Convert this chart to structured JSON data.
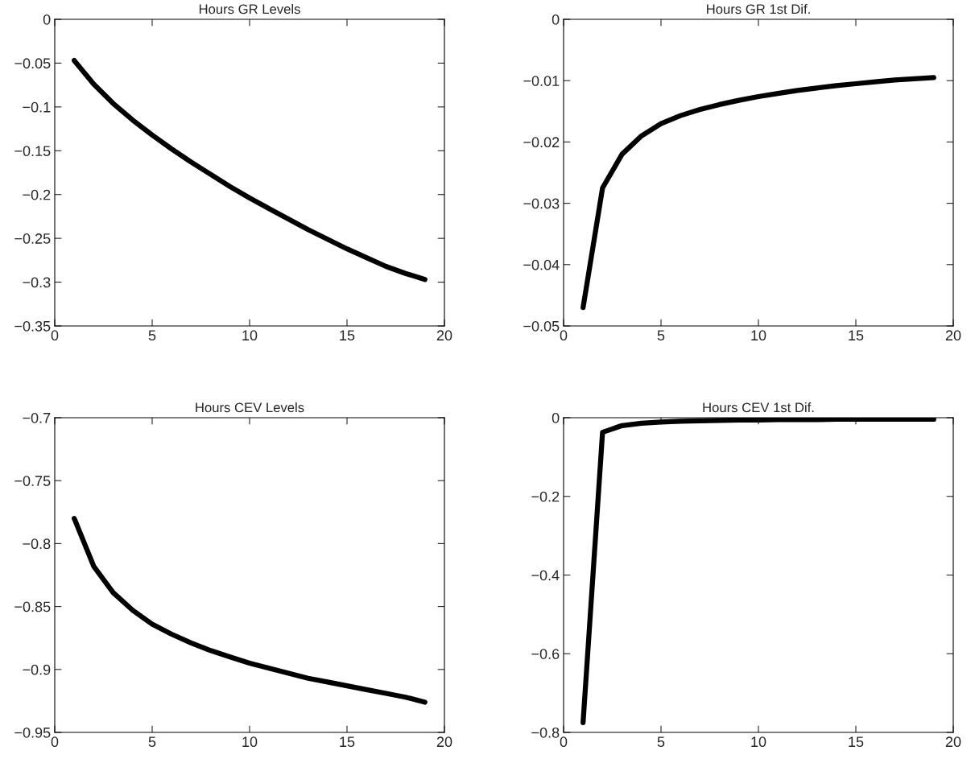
{
  "chart_data": [
    {
      "type": "line",
      "title": "Hours GR Levels",
      "x": [
        1,
        2,
        3,
        4,
        5,
        6,
        7,
        8,
        9,
        10,
        11,
        12,
        13,
        14,
        15,
        16,
        17,
        18,
        19
      ],
      "series": [
        {
          "color": "#000000",
          "values": [
            -0.047,
            -0.074,
            -0.096,
            -0.115,
            -0.132,
            -0.148,
            -0.163,
            -0.177,
            -0.191,
            -0.204,
            -0.216,
            -0.228,
            -0.24,
            -0.251,
            -0.262,
            -0.272,
            -0.282,
            -0.29,
            -0.297
          ]
        }
      ],
      "xlim": [
        0,
        20
      ],
      "xticks": [
        0,
        5,
        10,
        15,
        20
      ],
      "ylim": [
        -0.35,
        0
      ],
      "yticks": [
        -0.35,
        -0.3,
        -0.25,
        -0.2,
        -0.15,
        -0.1,
        -0.05,
        0
      ],
      "grid": false,
      "legend": false,
      "marker": "none",
      "line_style": "solid"
    },
    {
      "type": "line",
      "title": "Hours GR 1st Dif.",
      "x": [
        1,
        2,
        3,
        4,
        5,
        6,
        7,
        8,
        9,
        10,
        11,
        12,
        13,
        14,
        15,
        16,
        17,
        18,
        19
      ],
      "series": [
        {
          "color": "#000000",
          "values": [
            -0.047,
            -0.0275,
            -0.022,
            -0.019,
            -0.017,
            -0.0157,
            -0.0147,
            -0.0139,
            -0.0132,
            -0.0126,
            -0.0121,
            -0.0116,
            -0.0112,
            -0.0108,
            -0.0105,
            -0.0102,
            -0.0099,
            -0.0097,
            -0.0095
          ]
        }
      ],
      "xlim": [
        0,
        20
      ],
      "xticks": [
        0,
        5,
        10,
        15,
        20
      ],
      "ylim": [
        -0.05,
        0
      ],
      "yticks": [
        -0.05,
        -0.04,
        -0.03,
        -0.02,
        -0.01,
        0
      ],
      "grid": false,
      "legend": false,
      "marker": "none",
      "line_style": "solid"
    },
    {
      "type": "line",
      "title": "Hours CEV Levels",
      "x": [
        1,
        2,
        3,
        4,
        5,
        6,
        7,
        8,
        9,
        10,
        11,
        12,
        13,
        14,
        15,
        16,
        17,
        18,
        19
      ],
      "series": [
        {
          "color": "#000000",
          "values": [
            -0.78,
            -0.818,
            -0.839,
            -0.853,
            -0.864,
            -0.872,
            -0.879,
            -0.885,
            -0.89,
            -0.895,
            -0.899,
            -0.903,
            -0.907,
            -0.91,
            -0.913,
            -0.916,
            -0.919,
            -0.922,
            -0.926
          ]
        }
      ],
      "xlim": [
        0,
        20
      ],
      "xticks": [
        0,
        5,
        10,
        15,
        20
      ],
      "ylim": [
        -0.95,
        -0.7
      ],
      "yticks": [
        -0.95,
        -0.9,
        -0.85,
        -0.8,
        -0.75,
        -0.7
      ],
      "grid": false,
      "legend": false,
      "marker": "none",
      "line_style": "solid"
    },
    {
      "type": "line",
      "title": "Hours CEV 1st Dif.",
      "x": [
        1,
        2,
        3,
        4,
        5,
        6,
        7,
        8,
        9,
        10,
        11,
        12,
        13,
        14,
        15,
        16,
        17,
        18,
        19
      ],
      "series": [
        {
          "color": "#000000",
          "values": [
            -0.775,
            -0.037,
            -0.02,
            -0.014,
            -0.011,
            -0.009,
            -0.008,
            -0.007,
            -0.006,
            -0.006,
            -0.005,
            -0.005,
            -0.005,
            -0.004,
            -0.004,
            -0.004,
            -0.004,
            -0.004,
            -0.004
          ]
        }
      ],
      "xlim": [
        0,
        20
      ],
      "xticks": [
        0,
        5,
        10,
        15,
        20
      ],
      "ylim": [
        -0.8,
        0
      ],
      "yticks": [
        -0.8,
        -0.6,
        -0.4,
        -0.2,
        0
      ],
      "grid": false,
      "legend": false,
      "marker": "none",
      "line_style": "solid"
    }
  ]
}
